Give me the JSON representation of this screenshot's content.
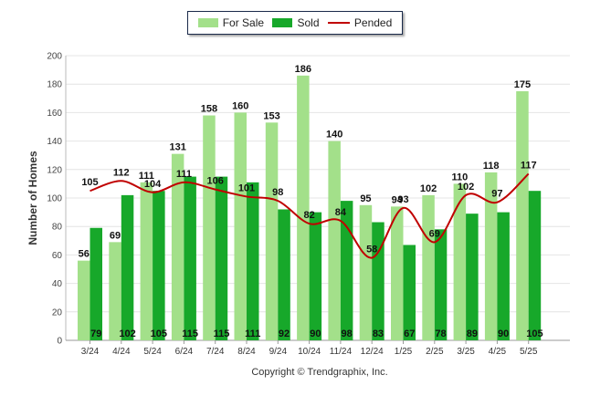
{
  "chart_data": {
    "type": "bar",
    "categories": [
      "3/24",
      "4/24",
      "5/24",
      "6/24",
      "7/24",
      "8/24",
      "9/24",
      "10/24",
      "11/24",
      "12/24",
      "1/25",
      "2/25",
      "3/25",
      "4/25",
      "5/25"
    ],
    "series": [
      {
        "name": "For Sale",
        "type": "bar",
        "color": "#a3e08a",
        "values": [
          56,
          69,
          111,
          131,
          158,
          160,
          153,
          186,
          140,
          95,
          94,
          102,
          110,
          118,
          175
        ]
      },
      {
        "name": "Sold",
        "type": "bar",
        "color": "#17a82a",
        "values": [
          79,
          102,
          105,
          115,
          115,
          111,
          92,
          90,
          98,
          83,
          67,
          78,
          89,
          90,
          105
        ]
      },
      {
        "name": "Pended",
        "type": "line",
        "color": "#c00000",
        "values": [
          105,
          112,
          104,
          111,
          106,
          101,
          98,
          82,
          84,
          58,
          93,
          69,
          102,
          97,
          117
        ]
      }
    ],
    "xlabel": "",
    "ylabel": "Number of Homes",
    "ylim": [
      0,
      200
    ],
    "yticks": [
      0,
      20,
      40,
      60,
      80,
      100,
      120,
      140,
      160,
      180,
      200
    ],
    "grid": true,
    "legend": "top-center"
  },
  "footer": {
    "copyright": "Copyright © Trendgraphix, Inc."
  }
}
